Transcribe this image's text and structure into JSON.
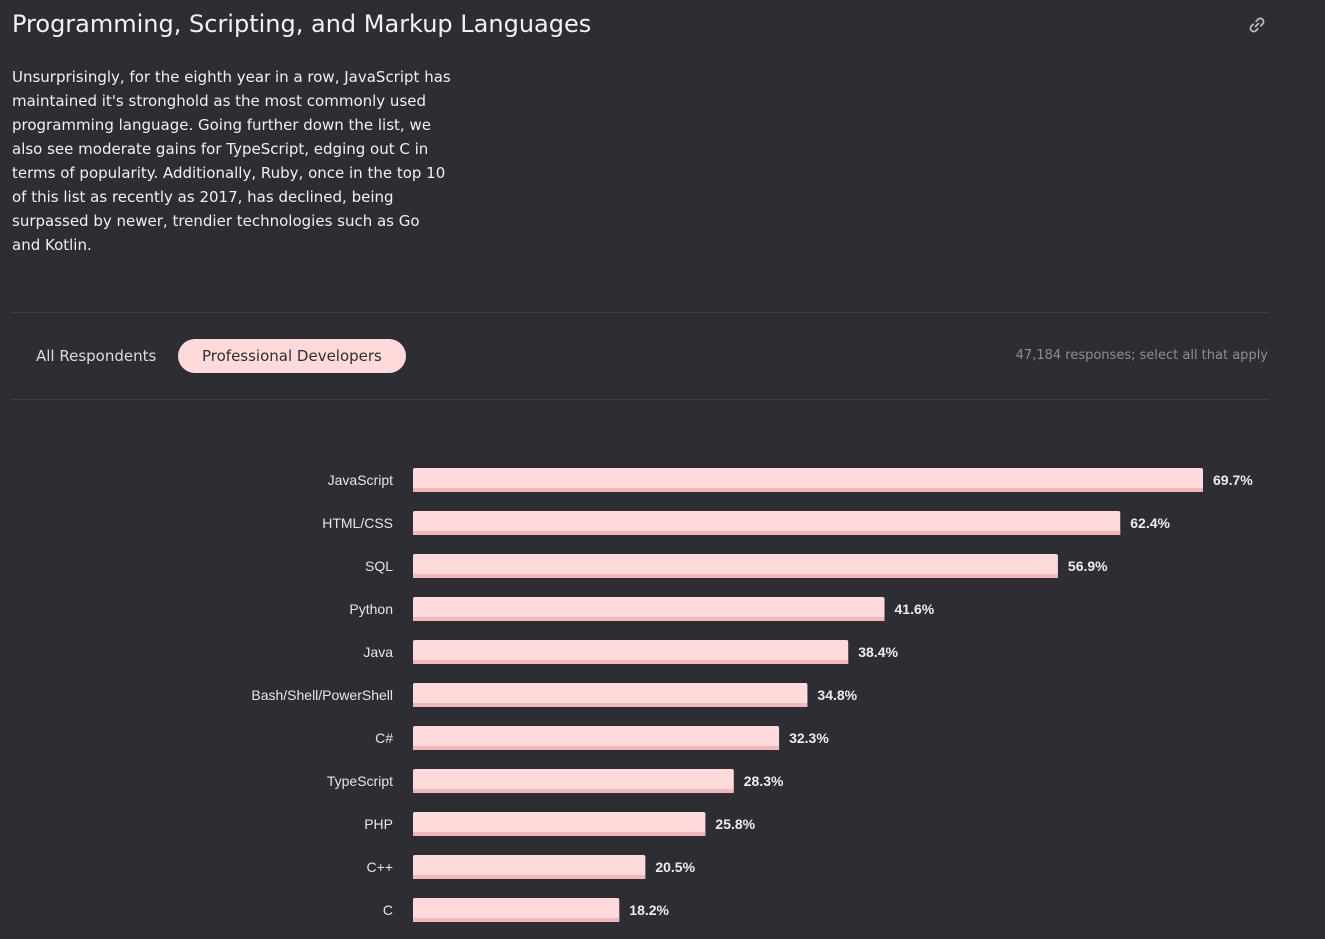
{
  "header": {
    "title": "Programming, Scripting, and Markup Languages",
    "link_icon": "link-icon"
  },
  "description": "Unsurprisingly, for the eighth year in a row, JavaScript has maintained it's stronghold as the most commonly used programming language. Going further down the list, we also see moderate gains for TypeScript, edging out C in terms of popularity. Additionally, Ruby, once in the top 10 of this list as recently as 2017, has declined, being surpassed by newer, trendier technologies such as Go and Kotlin.",
  "filters": {
    "tabs": [
      {
        "label": "All Respondents",
        "active": false
      },
      {
        "label": "Professional Developers",
        "active": true
      }
    ],
    "responses": "47,184 responses; select all that apply"
  },
  "colors": {
    "background": "#2d2e33",
    "bar": "#ffdadb",
    "bar_shadow": "#f3b7ba",
    "active_tab": "#ffdadb"
  },
  "chart_data": {
    "type": "bar",
    "orientation": "horizontal",
    "categories": [
      "JavaScript",
      "HTML/CSS",
      "SQL",
      "Python",
      "Java",
      "Bash/Shell/PowerShell",
      "C#",
      "TypeScript",
      "PHP",
      "C++",
      "C"
    ],
    "values": [
      69.7,
      62.4,
      56.9,
      41.6,
      38.4,
      34.8,
      32.3,
      28.3,
      25.8,
      20.5,
      18.2
    ],
    "value_labels": [
      "69.7%",
      "62.4%",
      "56.9%",
      "41.6%",
      "38.4%",
      "34.8%",
      "32.3%",
      "28.3%",
      "25.8%",
      "20.5%",
      "18.2%"
    ],
    "unit": "%",
    "xlim": [
      0,
      69.7
    ]
  }
}
